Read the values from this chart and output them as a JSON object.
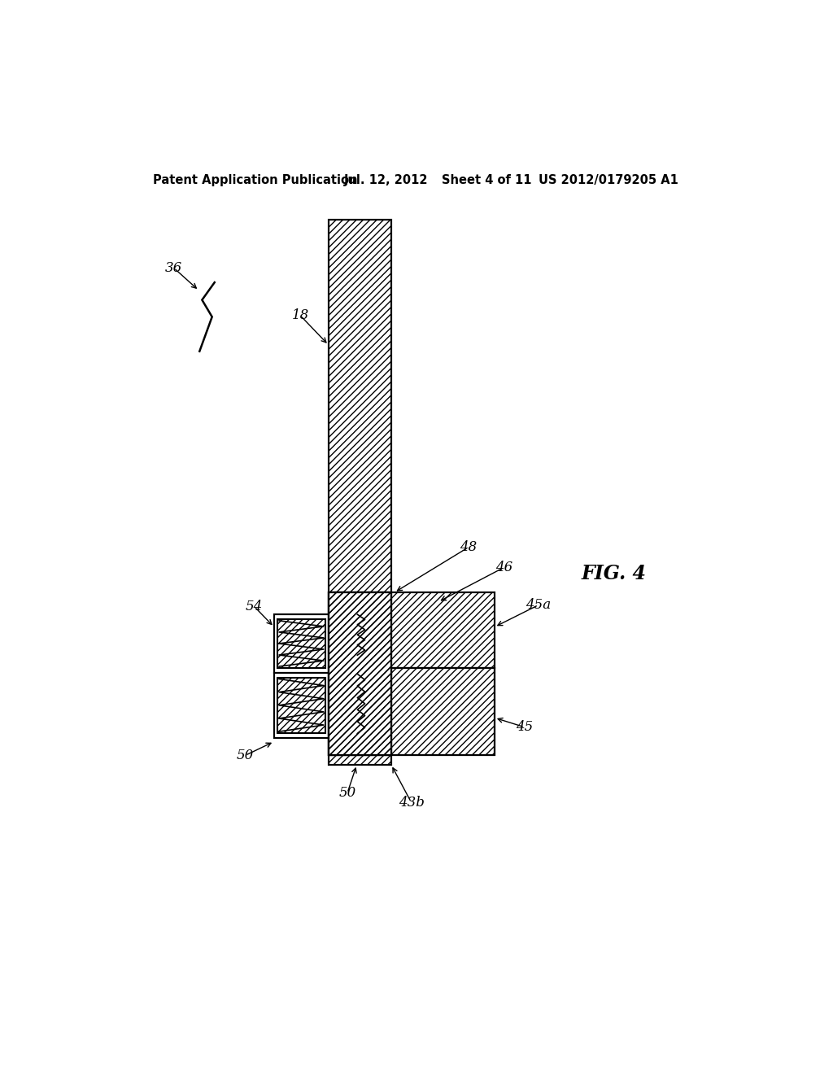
{
  "bg_color": "#ffffff",
  "header_text": "Patent Application Publication",
  "header_date": "Jul. 12, 2012",
  "header_sheet": "Sheet 4 of 11",
  "header_patent": "US 2012/0179205 A1",
  "fig_label": "FIG. 4",
  "ref_36": "36",
  "ref_18": "18",
  "ref_54": "54",
  "ref_50a": "50",
  "ref_50b": "50",
  "ref_45": "45",
  "ref_45a": "45a",
  "ref_43b": "43b",
  "ref_46": "46",
  "ref_48": "48",
  "lw": 1.5
}
